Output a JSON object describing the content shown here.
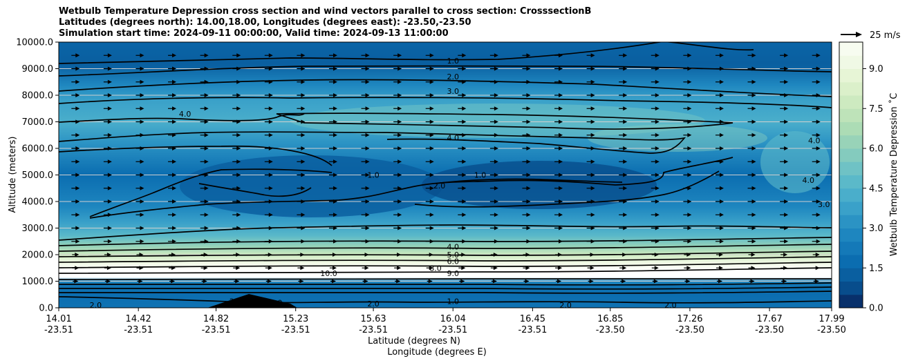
{
  "chart_data": {
    "type": "heatmap",
    "title_lines": [
      "Wetbulb Temperature Depression cross section and wind vectors parallel to cross section: CrosssectionB",
      "Latitudes (degrees north): 14.00,18.00, Longitudes (degrees east): -23.50,-23.50",
      "Simulation start time: 2024-09-11 00:00:00, Valid time: 2024-09-13 11:00:00"
    ],
    "ylabel": "Altitude (meters)",
    "xlabel_lat": "Latitude (degrees N)",
    "xlabel_lon": "Longitude (degrees E)",
    "ylim": [
      0,
      10000
    ],
    "y_ticks": [
      "0.0",
      "1000.0",
      "2000.0",
      "3000.0",
      "4000.0",
      "5000.0",
      "6000.0",
      "7000.0",
      "8000.0",
      "9000.0",
      "10000.0"
    ],
    "x_ticks_lat": [
      "14.01",
      "14.42",
      "14.82",
      "15.23",
      "15.63",
      "16.04",
      "16.45",
      "16.85",
      "17.26",
      "17.67",
      "17.99"
    ],
    "x_ticks_lon": [
      "-23.51",
      "-23.51",
      "-23.51",
      "-23.51",
      "-23.51",
      "-23.51",
      "-23.51",
      "-23.50",
      "-23.50",
      "-23.50",
      "-23.50"
    ],
    "colorbar": {
      "label": "Wetbulb Temperature Depression $^\\circ$C",
      "label_display": "Wetbulb Temperature Depression ˚C",
      "min": 0,
      "max": 10,
      "tick_labels": [
        "0.0",
        "1.5",
        "3.0",
        "4.5",
        "6.0",
        "7.5",
        "9.0"
      ],
      "colormap": "GnBu_r",
      "colors": [
        "#08306b",
        "#084d8c",
        "#0a5fa0",
        "#0b6db0",
        "#1479b8",
        "#1e86bf",
        "#2b93c4",
        "#3aa1c9",
        "#4aaecb",
        "#5bb9c9",
        "#6fc2c5",
        "#84cbbe",
        "#98d3b8",
        "#acdcb5",
        "#bee3b9",
        "#cdeac0",
        "#dbf0ca",
        "#e7f5d6",
        "#f0f9e5",
        "#f7fcf0"
      ]
    },
    "quiver_key": {
      "label": "25 m/s",
      "value": 25
    },
    "contour_levels": [
      1.0,
      2.0,
      3.0,
      4.0,
      5.0,
      6.0,
      7.0,
      8.0,
      9.0,
      10.0
    ],
    "contour_labels": [
      {
        "text": "1.0",
        "lat": 16.04,
        "alt": 9300
      },
      {
        "text": "2.0",
        "lat": 16.04,
        "alt": 8700
      },
      {
        "text": "3.0",
        "lat": 16.04,
        "alt": 8150
      },
      {
        "text": "4.0",
        "lat": 16.04,
        "alt": 6400
      },
      {
        "text": "4.0",
        "lat": 14.66,
        "alt": 7300
      },
      {
        "text": "1.0",
        "lat": 15.63,
        "alt": 5000
      },
      {
        "text": "2.0",
        "lat": 15.97,
        "alt": 4600
      },
      {
        "text": "1.0",
        "lat": 16.18,
        "alt": 5000
      },
      {
        "text": "4.0",
        "lat": 17.9,
        "alt": 6300
      },
      {
        "text": "4.0",
        "lat": 17.87,
        "alt": 4800
      },
      {
        "text": "3.0",
        "lat": 17.95,
        "alt": 3900
      },
      {
        "text": "4.0",
        "lat": 16.04,
        "alt": 2300
      },
      {
        "text": "5.0",
        "lat": 16.04,
        "alt": 2000
      },
      {
        "text": "6.0",
        "lat": 16.04,
        "alt": 1750
      },
      {
        "text": "8.0",
        "lat": 15.95,
        "alt": 1500
      },
      {
        "text": "9.0",
        "lat": 16.04,
        "alt": 1300
      },
      {
        "text": "10.0",
        "lat": 15.4,
        "alt": 1300
      },
      {
        "text": "1.0",
        "lat": 16.04,
        "alt": 250
      },
      {
        "text": "2.0",
        "lat": 14.92,
        "alt": 250
      },
      {
        "text": "2.0",
        "lat": 15.13,
        "alt": 200
      },
      {
        "text": "2.0",
        "lat": 15.63,
        "alt": 150
      },
      {
        "text": "2.0",
        "lat": 16.62,
        "alt": 100
      },
      {
        "text": "2.0",
        "lat": 17.16,
        "alt": 100
      },
      {
        "text": "2.0",
        "lat": 14.2,
        "alt": 100
      }
    ]
  }
}
